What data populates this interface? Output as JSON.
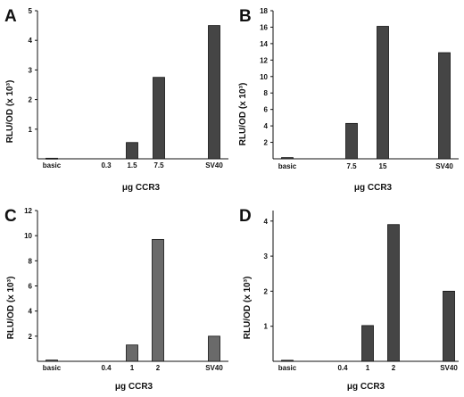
{
  "panels": [
    {
      "letter": "A",
      "ylabel": "RLU/OD (x 10³)",
      "xlabel": "μg CCR3"
    },
    {
      "letter": "B",
      "ylabel": "RLU/OD (x 10³)",
      "xlabel": "μg CCR3"
    },
    {
      "letter": "C",
      "ylabel": "RLU/OD (x 10³)",
      "xlabel": "μg CCR3"
    },
    {
      "letter": "D",
      "ylabel": "RLU/OD (x 10³)",
      "xlabel": "μg CCR3"
    }
  ],
  "chart_data": [
    {
      "type": "bar",
      "title": "A",
      "categories": [
        "basic",
        "0.3",
        "1.5",
        "7.5",
        "SV40"
      ],
      "values": [
        0.02,
        0,
        0.55,
        2.75,
        4.5
      ],
      "ylim": [
        0,
        5
      ],
      "yticks": [
        "1",
        "2",
        "3",
        "4",
        "5"
      ],
      "xlabel": "μg CCR3",
      "ylabel": "RLU/OD (x 10³)",
      "bar_color": "#454545"
    },
    {
      "type": "bar",
      "title": "B",
      "categories": [
        "basic",
        "7.5",
        "15",
        "SV40"
      ],
      "values": [
        0.15,
        4.3,
        16.1,
        12.9
      ],
      "ylim": [
        0,
        18
      ],
      "yticks": [
        "2",
        "4",
        "6",
        "8",
        "10",
        "12",
        "14",
        "16",
        "18"
      ],
      "xlabel": "μg CCR3",
      "ylabel": "RLU/OD (x 10³)",
      "bar_color": "#454545"
    },
    {
      "type": "bar",
      "title": "C",
      "categories": [
        "basic",
        "0.4",
        "1",
        "2",
        "SV40"
      ],
      "values": [
        0.1,
        0,
        1.3,
        9.7,
        2.0
      ],
      "ylim": [
        0,
        12
      ],
      "yticks": [
        "2",
        "4",
        "6",
        "8",
        "10",
        "12"
      ],
      "xlabel": "μg CCR3",
      "ylabel": "RLU/OD (x 10³)",
      "bar_color": "#6a6a6a"
    },
    {
      "type": "bar",
      "title": "D",
      "categories": [
        "basic",
        "0.4",
        "1",
        "2",
        "SV40"
      ],
      "values": [
        0.03,
        0,
        1.02,
        3.9,
        2.0
      ],
      "ylim": [
        0,
        4.3
      ],
      "yticks": [
        "1",
        "2",
        "3",
        "4"
      ],
      "xlabel": "μg CCR3",
      "ylabel": "RLU/OD (x 10³)",
      "bar_color": "#454545"
    }
  ]
}
